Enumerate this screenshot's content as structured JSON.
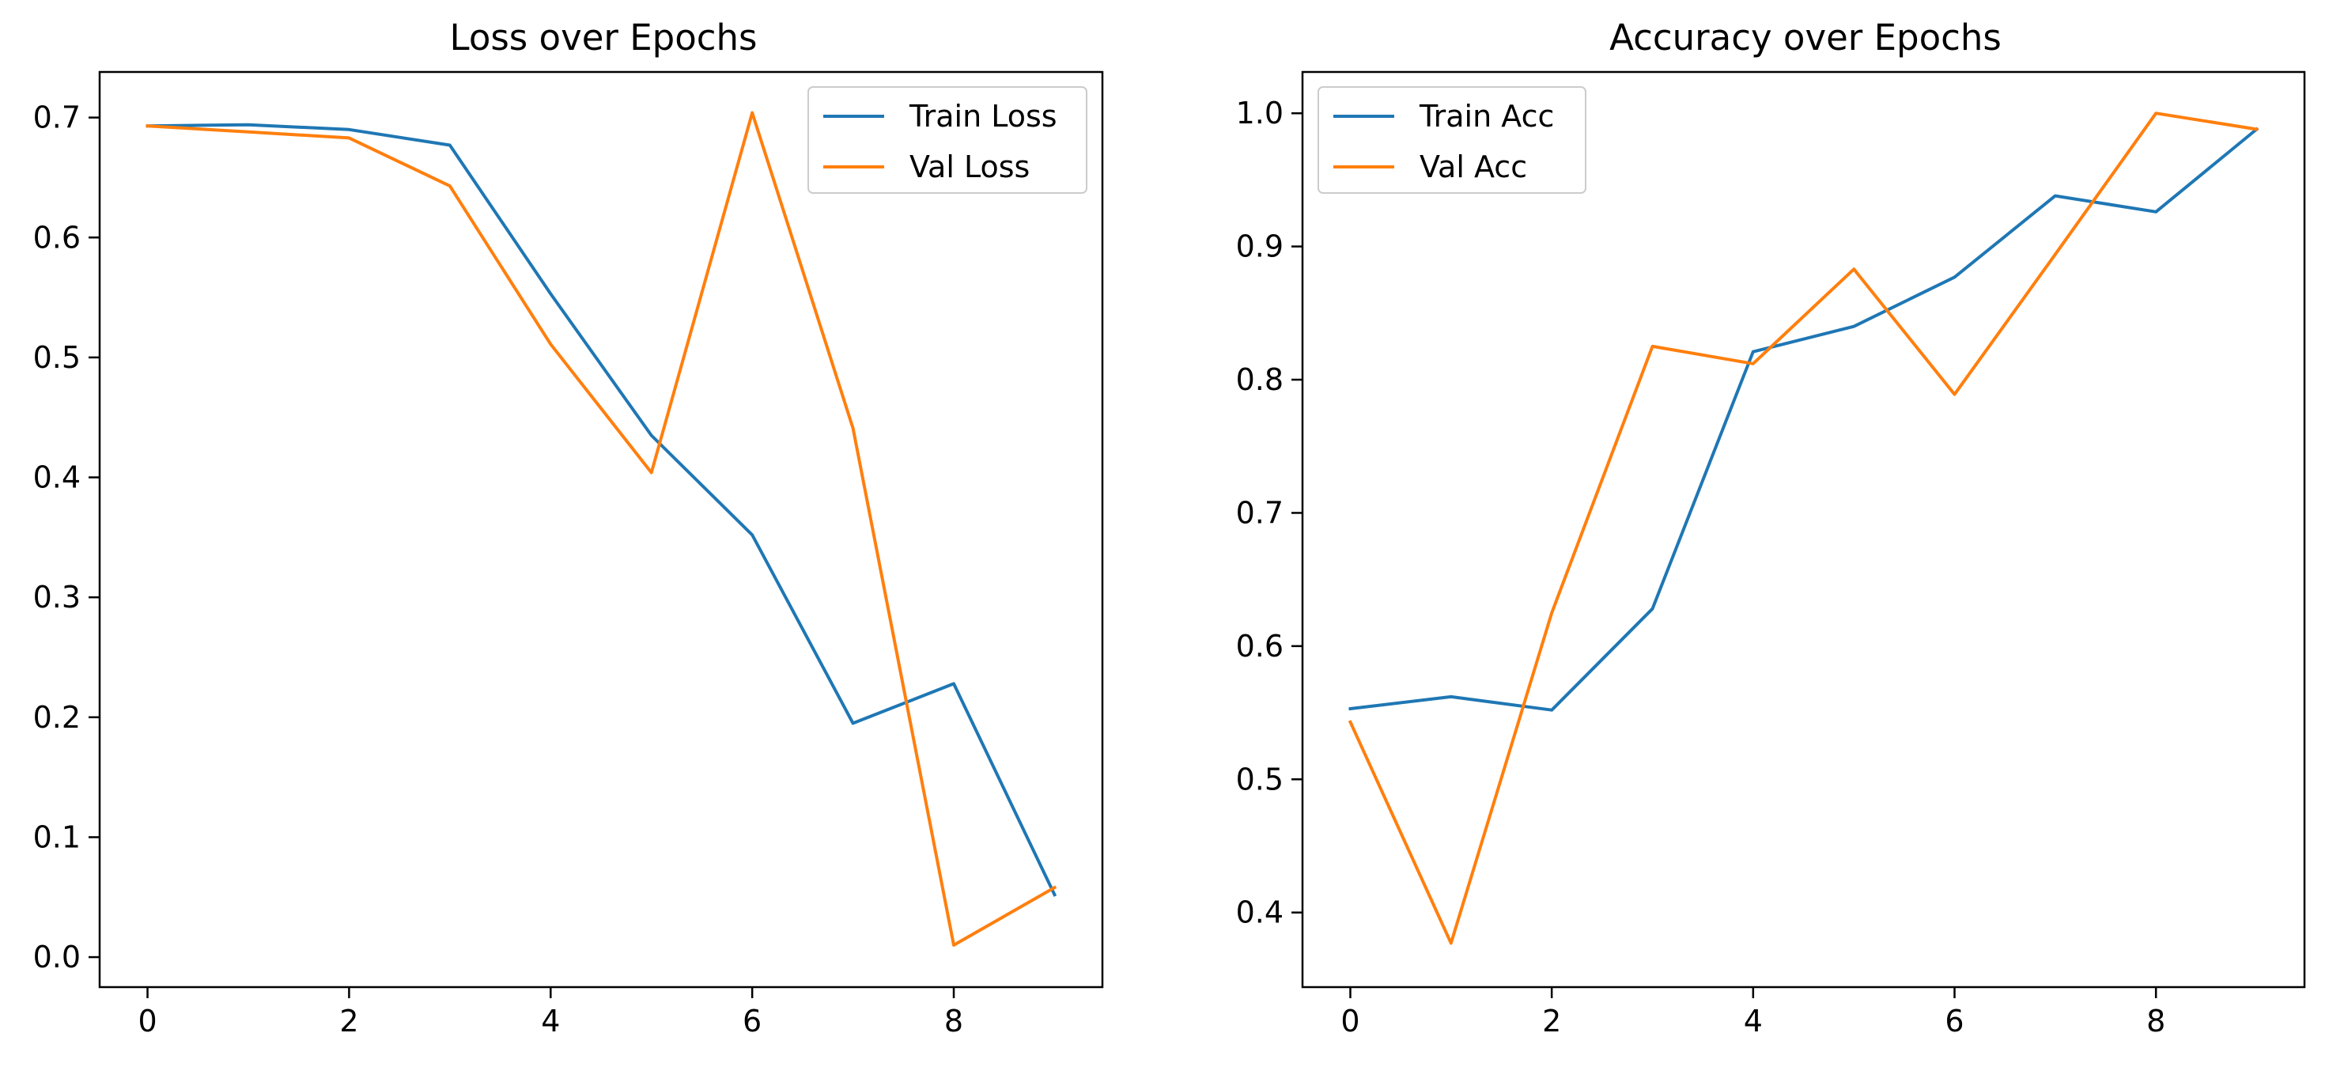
{
  "chart_data": [
    {
      "type": "line",
      "title": "Loss over Epochs",
      "xlabel": "",
      "ylabel": "",
      "x": [
        0,
        1,
        2,
        3,
        4,
        5,
        6,
        7,
        8,
        9
      ],
      "xlim": [
        -0.475,
        9.475
      ],
      "ylim": [
        -0.025,
        0.738
      ],
      "xticks": [
        0,
        2,
        4,
        6,
        8
      ],
      "xtick_labels": [
        "0",
        "2",
        "4",
        "6",
        "8"
      ],
      "yticks": [
        0.0,
        0.1,
        0.2,
        0.3,
        0.4,
        0.5,
        0.6,
        0.7
      ],
      "ytick_labels": [
        "0.0",
        "0.1",
        "0.2",
        "0.3",
        "0.4",
        "0.5",
        "0.6",
        "0.7"
      ],
      "grid": false,
      "legend_position": "upper right",
      "series": [
        {
          "name": "Train Loss",
          "color": "#1f77b4",
          "values": [
            0.693,
            0.694,
            0.69,
            0.677,
            0.553,
            0.435,
            0.352,
            0.195,
            0.228,
            0.052
          ]
        },
        {
          "name": "Val Loss",
          "color": "#ff7f0e",
          "values": [
            0.693,
            0.688,
            0.683,
            0.643,
            0.511,
            0.404,
            0.704,
            0.441,
            0.01,
            0.058
          ]
        }
      ]
    },
    {
      "type": "line",
      "title": "Accuracy over Epochs",
      "xlabel": "",
      "ylabel": "",
      "x": [
        0,
        1,
        2,
        3,
        4,
        5,
        6,
        7,
        8,
        9
      ],
      "xlim": [
        -0.475,
        9.475
      ],
      "ylim": [
        0.344,
        1.031
      ],
      "xticks": [
        0,
        2,
        4,
        6,
        8
      ],
      "xtick_labels": [
        "0",
        "2",
        "4",
        "6",
        "8"
      ],
      "yticks": [
        0.4,
        0.5,
        0.6,
        0.7,
        0.8,
        0.9,
        1.0
      ],
      "ytick_labels": [
        "0.4",
        "0.5",
        "0.6",
        "0.7",
        "0.8",
        "0.9",
        "1.0"
      ],
      "grid": false,
      "legend_position": "upper left",
      "series": [
        {
          "name": "Train Acc",
          "color": "#1f77b4",
          "values": [
            0.553,
            0.562,
            0.552,
            0.628,
            0.821,
            0.84,
            0.877,
            0.938,
            0.926,
            0.988
          ]
        },
        {
          "name": "Val Acc",
          "color": "#ff7f0e",
          "values": [
            0.543,
            0.377,
            0.625,
            0.825,
            0.812,
            0.883,
            0.789,
            0.894,
            1.0,
            0.988
          ]
        }
      ]
    }
  ]
}
